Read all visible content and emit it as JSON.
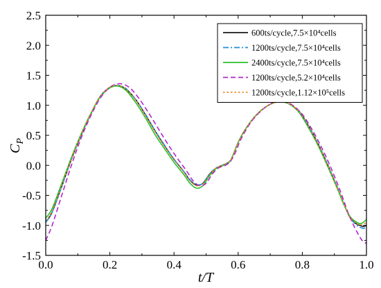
{
  "chart_data": {
    "type": "line",
    "title": "",
    "xlabel": "t/T",
    "ylabel": "C_P",
    "ylabel_main": "C",
    "ylabel_sub": "P",
    "xlim": [
      0.0,
      1.0
    ],
    "ylim": [
      -1.5,
      2.5
    ],
    "xticks": [
      "0.0",
      "0.2",
      "0.4",
      "0.6",
      "0.8",
      "1.0"
    ],
    "yticks": [
      "-1.5",
      "-1.0",
      "-0.5",
      "0.0",
      "0.5",
      "1.0",
      "1.5",
      "2.0",
      "2.5"
    ],
    "grid": false,
    "legend_position": "top-right",
    "series": [
      {
        "name": "600ts/cycle,7.5×10⁴cells",
        "color": "#1a1a1a",
        "dash": "solid",
        "x": [
          0.0,
          0.02,
          0.05,
          0.08,
          0.11,
          0.14,
          0.17,
          0.2,
          0.225,
          0.25,
          0.28,
          0.31,
          0.34,
          0.37,
          0.4,
          0.43,
          0.45,
          0.47,
          0.49,
          0.51,
          0.53,
          0.55,
          0.57,
          0.58,
          0.6,
          0.62,
          0.65,
          0.68,
          0.71,
          0.735,
          0.76,
          0.79,
          0.82,
          0.85,
          0.88,
          0.91,
          0.93,
          0.95,
          0.97,
          0.98,
          0.99,
          1.0
        ],
        "y": [
          -0.95,
          -0.78,
          -0.35,
          0.1,
          0.5,
          0.85,
          1.15,
          1.3,
          1.33,
          1.27,
          1.1,
          0.85,
          0.58,
          0.33,
          0.1,
          -0.1,
          -0.25,
          -0.33,
          -0.3,
          -0.15,
          -0.05,
          0.0,
          0.05,
          0.12,
          0.38,
          0.58,
          0.8,
          0.95,
          1.04,
          1.06,
          1.02,
          0.9,
          0.65,
          0.35,
          0.0,
          -0.38,
          -0.65,
          -0.88,
          -0.98,
          -1.0,
          -1.02,
          -1.0
        ]
      },
      {
        "name": "1200ts/cycle,7.5×10⁴cells",
        "color": "#1f8fd6",
        "dash": "8 3 2 3",
        "x": [
          0.0,
          0.02,
          0.05,
          0.08,
          0.11,
          0.14,
          0.17,
          0.2,
          0.225,
          0.25,
          0.28,
          0.31,
          0.34,
          0.37,
          0.4,
          0.43,
          0.45,
          0.47,
          0.49,
          0.51,
          0.53,
          0.55,
          0.57,
          0.58,
          0.6,
          0.62,
          0.65,
          0.68,
          0.71,
          0.735,
          0.76,
          0.79,
          0.82,
          0.85,
          0.88,
          0.91,
          0.93,
          0.95,
          0.97,
          0.98,
          0.99,
          1.0
        ],
        "y": [
          -0.95,
          -0.78,
          -0.35,
          0.1,
          0.5,
          0.85,
          1.15,
          1.3,
          1.33,
          1.28,
          1.1,
          0.86,
          0.59,
          0.34,
          0.1,
          -0.1,
          -0.24,
          -0.32,
          -0.3,
          -0.15,
          -0.05,
          0.0,
          0.05,
          0.12,
          0.38,
          0.58,
          0.8,
          0.95,
          1.04,
          1.06,
          1.02,
          0.9,
          0.65,
          0.35,
          0.0,
          -0.38,
          -0.65,
          -0.88,
          -1.0,
          -1.03,
          -1.05,
          -1.03
        ]
      },
      {
        "name": "2400ts/cycle,7.5×10⁴cells",
        "color": "#2bbf2b",
        "dash": "solid",
        "x": [
          0.0,
          0.02,
          0.05,
          0.08,
          0.11,
          0.14,
          0.17,
          0.2,
          0.225,
          0.25,
          0.28,
          0.31,
          0.34,
          0.37,
          0.4,
          0.43,
          0.45,
          0.47,
          0.49,
          0.51,
          0.53,
          0.55,
          0.57,
          0.58,
          0.6,
          0.62,
          0.65,
          0.68,
          0.71,
          0.735,
          0.76,
          0.79,
          0.82,
          0.85,
          0.88,
          0.91,
          0.93,
          0.95,
          0.97,
          0.98,
          0.99,
          1.0
        ],
        "y": [
          -0.88,
          -0.72,
          -0.3,
          0.13,
          0.52,
          0.86,
          1.14,
          1.29,
          1.32,
          1.25,
          1.05,
          0.8,
          0.52,
          0.28,
          0.05,
          -0.15,
          -0.3,
          -0.38,
          -0.34,
          -0.18,
          -0.06,
          -0.01,
          0.04,
          0.12,
          0.38,
          0.58,
          0.8,
          0.95,
          1.04,
          1.06,
          1.02,
          0.88,
          0.62,
          0.32,
          -0.03,
          -0.4,
          -0.66,
          -0.86,
          -0.95,
          -0.97,
          -0.95,
          -0.9
        ]
      },
      {
        "name": "1200ts/cycle,5.2×10⁴cells",
        "color": "#b026c8",
        "dash": "7 4",
        "x": [
          0.0,
          0.02,
          0.05,
          0.08,
          0.11,
          0.14,
          0.17,
          0.2,
          0.23,
          0.26,
          0.29,
          0.32,
          0.35,
          0.38,
          0.41,
          0.44,
          0.46,
          0.48,
          0.5,
          0.52,
          0.54,
          0.56,
          0.575,
          0.59,
          0.61,
          0.64,
          0.67,
          0.7,
          0.725,
          0.745,
          0.77,
          0.8,
          0.83,
          0.86,
          0.89,
          0.92,
          0.94,
          0.96,
          0.98,
          0.99,
          1.0
        ],
        "y": [
          -1.25,
          -1.0,
          -0.5,
          0.0,
          0.45,
          0.82,
          1.12,
          1.3,
          1.36,
          1.3,
          1.12,
          0.88,
          0.62,
          0.36,
          0.12,
          -0.1,
          -0.26,
          -0.34,
          -0.3,
          -0.14,
          -0.04,
          0.0,
          0.06,
          0.2,
          0.45,
          0.72,
          0.9,
          1.02,
          1.07,
          1.07,
          1.0,
          0.85,
          0.6,
          0.3,
          -0.05,
          -0.45,
          -0.75,
          -1.0,
          -1.2,
          -1.27,
          -1.3
        ]
      },
      {
        "name": "1200ts/cycle,1.12×10⁵cells",
        "color": "#f08a24",
        "dash": "2.5 3",
        "x": [
          0.0,
          0.02,
          0.05,
          0.08,
          0.11,
          0.14,
          0.17,
          0.2,
          0.225,
          0.25,
          0.28,
          0.31,
          0.34,
          0.37,
          0.4,
          0.43,
          0.45,
          0.47,
          0.49,
          0.51,
          0.53,
          0.55,
          0.57,
          0.58,
          0.6,
          0.62,
          0.65,
          0.68,
          0.71,
          0.735,
          0.76,
          0.79,
          0.82,
          0.85,
          0.88,
          0.91,
          0.93,
          0.95,
          0.97,
          0.98,
          0.99,
          1.0
        ],
        "y": [
          -0.92,
          -0.76,
          -0.33,
          0.11,
          0.51,
          0.86,
          1.15,
          1.3,
          1.33,
          1.27,
          1.09,
          0.84,
          0.57,
          0.32,
          0.09,
          -0.11,
          -0.26,
          -0.34,
          -0.31,
          -0.16,
          -0.05,
          0.0,
          0.05,
          0.12,
          0.38,
          0.58,
          0.8,
          0.95,
          1.04,
          1.06,
          1.02,
          0.89,
          0.64,
          0.34,
          -0.01,
          -0.39,
          -0.65,
          -0.87,
          -0.97,
          -0.99,
          -0.98,
          -0.95
        ]
      }
    ]
  }
}
